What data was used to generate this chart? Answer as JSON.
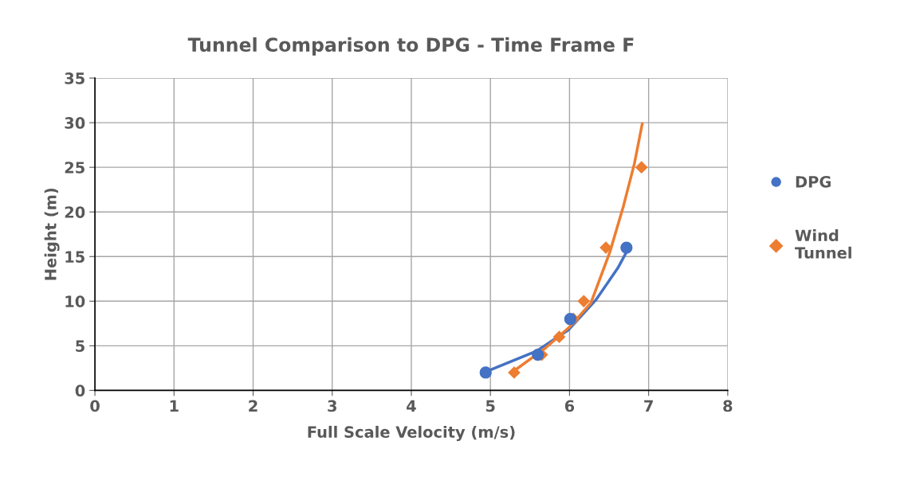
{
  "chart_data": {
    "type": "scatter",
    "title": "Tunnel Comparison to DPG - Time Frame F",
    "xlabel": "Full Scale Velocity (m/s)",
    "ylabel": "Height (m)",
    "xlim": [
      0,
      8
    ],
    "xticks": [
      0,
      1,
      2,
      3,
      4,
      5,
      6,
      7,
      8
    ],
    "ylim": [
      0,
      35
    ],
    "yticks": [
      0,
      5,
      10,
      15,
      20,
      25,
      30,
      35
    ],
    "grid": true,
    "legend": "right",
    "series": [
      {
        "name": "DPG",
        "color": "#4472c4",
        "marker": "circle",
        "x": [
          4.94,
          5.6,
          6.01,
          6.72
        ],
        "values": [
          2,
          4,
          8,
          16
        ]
      },
      {
        "name": "Wind Tunnel",
        "color": "#ed7d31",
        "marker": "diamond",
        "x": [
          5.3,
          5.65,
          5.87,
          6.05,
          6.18,
          6.46,
          6.91
        ],
        "values": [
          2,
          4,
          6,
          8,
          10,
          16,
          25
        ]
      },
      {
        "type": "line",
        "color": "#4472c4",
        "x": [
          4.94,
          5.0,
          5.58,
          5.99,
          6.33,
          6.61,
          6.72
        ],
        "values": [
          2.1,
          2.3,
          4.4,
          6.8,
          10.1,
          13.7,
          15.5
        ]
      },
      {
        "type": "line",
        "color": "#ed7d31",
        "x": [
          5.3,
          5.69,
          6.0,
          6.27,
          6.51,
          6.68,
          6.82,
          6.92
        ],
        "values": [
          2.2,
          4.7,
          7.1,
          9.8,
          15.5,
          20.6,
          25.4,
          29.9
        ]
      }
    ]
  }
}
